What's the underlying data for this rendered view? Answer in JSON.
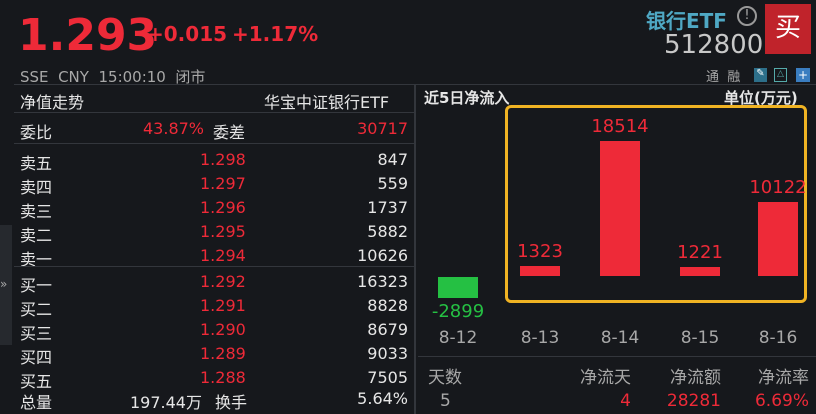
{
  "header": {
    "price": "1.293",
    "change": "+0.015",
    "change_pct": "+1.17%",
    "name": "银行ETF",
    "code": "512800",
    "buy_label": "买",
    "exchange": "SSE",
    "currency": "CNY",
    "time": "15:00:10",
    "status": "闭市",
    "tags": [
      "通",
      "融"
    ]
  },
  "left": {
    "nav_label": "净值走势",
    "fund_name": "华宝中证银行ETF",
    "weibi_label": "委比",
    "weibi": "43.87%",
    "weicha_label": "委差",
    "weicha": "30717",
    "asks": [
      {
        "label": "卖五",
        "price": "1.298",
        "vol": "847"
      },
      {
        "label": "卖四",
        "price": "1.297",
        "vol": "559"
      },
      {
        "label": "卖三",
        "price": "1.296",
        "vol": "1737"
      },
      {
        "label": "卖二",
        "price": "1.295",
        "vol": "5882"
      },
      {
        "label": "卖一",
        "price": "1.294",
        "vol": "10626"
      }
    ],
    "bids": [
      {
        "label": "买一",
        "price": "1.292",
        "vol": "16323"
      },
      {
        "label": "买二",
        "price": "1.291",
        "vol": "8828"
      },
      {
        "label": "买三",
        "price": "1.290",
        "vol": "8679"
      },
      {
        "label": "买四",
        "price": "1.289",
        "vol": "9033"
      },
      {
        "label": "买五",
        "price": "1.288",
        "vol": "7505"
      }
    ],
    "volume_label": "总量",
    "volume": "197.44万",
    "turnover_label": "换手",
    "turnover": "5.64%"
  },
  "chart_data": {
    "type": "bar",
    "title": "近5日净流入",
    "unit": "单位(万元)",
    "categories": [
      "8-12",
      "8-13",
      "8-14",
      "8-15",
      "8-16"
    ],
    "values": [
      -2899,
      1323,
      18514,
      1221,
      10122
    ],
    "colors": {
      "positive": "#ee2a38",
      "negative": "#25c043",
      "highlight": "#f0b323"
    }
  },
  "summary": {
    "headers": [
      "天数",
      "净流天",
      "净流额",
      "净流率"
    ],
    "values": [
      "5",
      "4",
      "28281",
      "6.69%"
    ]
  }
}
